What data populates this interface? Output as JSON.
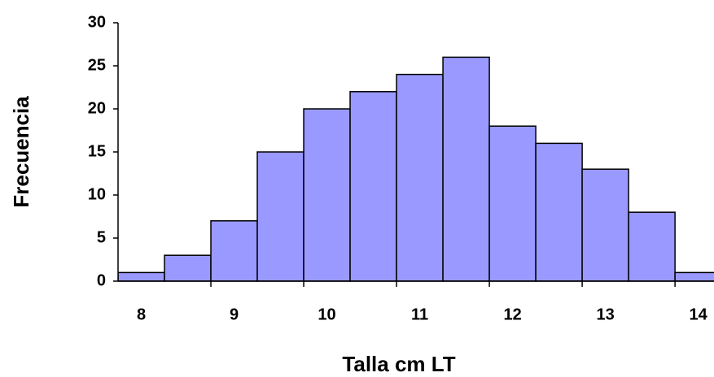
{
  "chart_data": {
    "type": "histogram",
    "x_label": "Talla cm LT",
    "y_label": "Frecuencia",
    "bins": [
      7.75,
      8.25,
      8.75,
      9.25,
      9.75,
      10.25,
      10.75,
      11.25,
      11.75,
      12.25,
      12.75,
      13.25,
      13.75,
      14.25
    ],
    "values": [
      1,
      3,
      7,
      15,
      20,
      22,
      24,
      26,
      18,
      16,
      13,
      8,
      1
    ],
    "color": "#9999ff",
    "xlim": [
      7.75,
      14.17
    ],
    "xticks": [
      8,
      9,
      10,
      11,
      12,
      13,
      14
    ],
    "ylim": [
      0,
      30
    ],
    "yticks": [
      0,
      5,
      10,
      15,
      20,
      25,
      30
    ],
    "grid": false
  }
}
